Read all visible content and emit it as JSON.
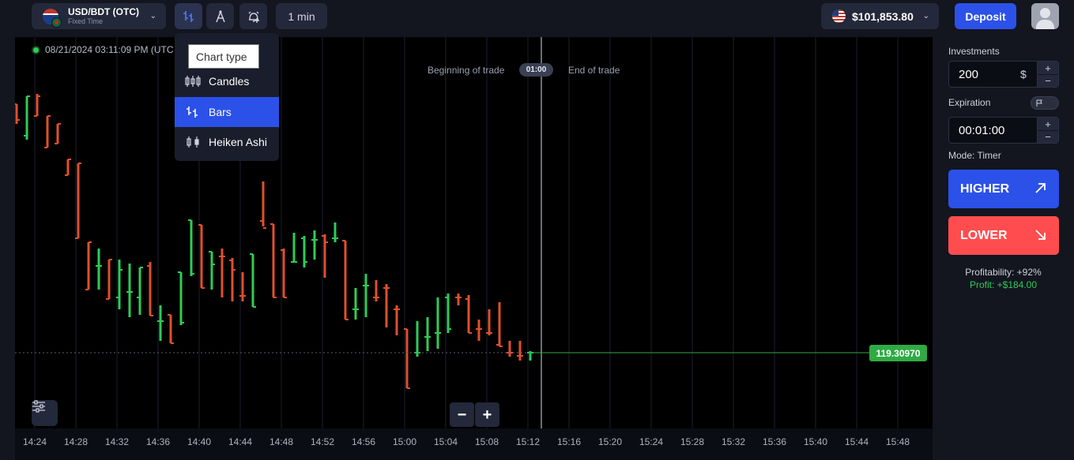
{
  "topbar": {
    "asset_name": "USD/BDT (OTC)",
    "asset_mode": "Fixed Time",
    "timeframe": "1 min",
    "balance": "$101,853.80",
    "deposit_label": "Deposit"
  },
  "chart_menu": {
    "tooltip": "Chart type",
    "items": [
      {
        "label": "Candles",
        "icon": "candles-icon",
        "selected": false
      },
      {
        "label": "Bars",
        "icon": "bars-icon",
        "selected": true
      },
      {
        "label": "Heiken Ashi",
        "icon": "heiken-ashi-icon",
        "selected": false
      }
    ]
  },
  "chart_header": {
    "timestamp": "08/21/2024  03:11:09 PM  (UTC",
    "beginning_label": "Beginning of trade",
    "timer": "01:00",
    "end_label": "End of trade",
    "current_price": "119.30970"
  },
  "chart_data": {
    "type": "ohlc_bars",
    "x_axis_ticks": [
      "14:24",
      "14:28",
      "14:32",
      "14:36",
      "14:40",
      "14:44",
      "14:48",
      "14:52",
      "14:56",
      "15:00",
      "15:04",
      "15:08",
      "15:12",
      "15:16",
      "15:20",
      "15:24",
      "15:28",
      "15:32",
      "15:36",
      "15:40",
      "15:44",
      "15:48"
    ],
    "current_price": 119.3097,
    "colors": {
      "up": "#2dcc58",
      "down": "#e0502c",
      "price_line": "#2faa44"
    },
    "grid": true
  },
  "zoom": {
    "minus": "−",
    "plus": "+"
  },
  "panel": {
    "investments_label": "Investments",
    "investment_value": "200",
    "currency": "$",
    "expiration_label": "Expiration",
    "expiration_value": "00:01:00",
    "step_plus": "+",
    "step_minus": "−",
    "mode_label": "Mode: Timer",
    "higher_label": "HIGHER",
    "lower_label": "LOWER",
    "profitability": "Profitability: +92%",
    "profit": "Profit: +$184.00"
  },
  "colors": {
    "accent": "#2c51e8",
    "down": "#ff4d4f",
    "up": "#2dcc58",
    "background": "#0b0d14"
  }
}
